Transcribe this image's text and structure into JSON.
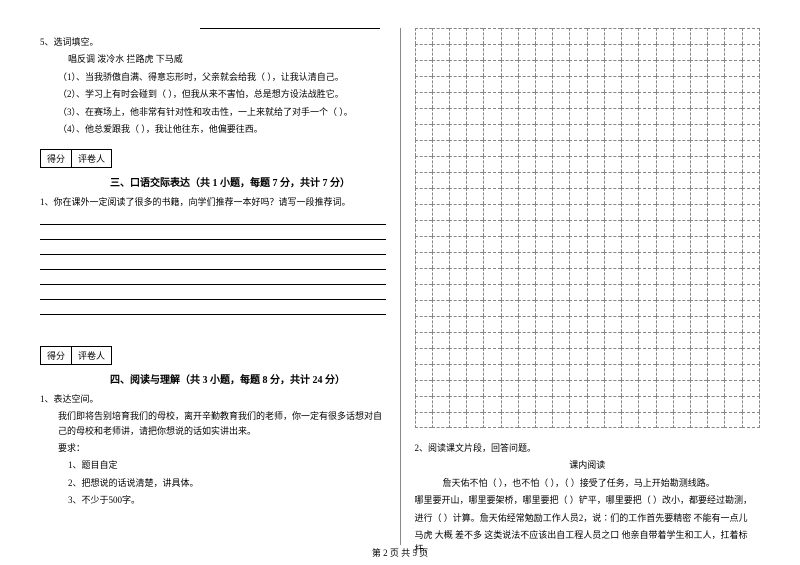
{
  "q5": {
    "title": "5、选词填空。",
    "words": "唱反调        泼冷水        拦路虎        下马威",
    "item1": "（1）、当我骄傲自满、得意忘形时，父亲就会给我（            ），让我认清自己。",
    "item2": "（2）、学习上有时会碰到（            ），但我从来不害怕，总是想方设法战胜它。",
    "item3": "（3）、在赛场上，他非常有针对性和攻击性，一上来就给了对手一个（            ）。",
    "item4": "（4）、他总爱跟我（            ），我让他往东，他偏要往西。"
  },
  "scorebox": {
    "label1": "得分",
    "label2": "评卷人"
  },
  "section3": {
    "title": "三、口语交际表达（共 1 小题，每题 7 分，共计 7 分）",
    "q1": "1、你在课外一定阅读了很多的书籍，向学们推荐一本好吗？请写一段推荐词。"
  },
  "section4": {
    "title": "四、阅读与理解（共 3 小题，每题 8 分，共计 24 分）",
    "q1_title": "1、表达空间。",
    "q1_body": "我们即将告别培育我们的母校，离开辛勤教育我们的老师，你一定有很多话想对自己的母校和老师讲，请把你想说的话如实讲出来。",
    "req_label": "要求：",
    "req1": "1、题目自定",
    "req2": "2、把想说的话说清楚，讲具体。",
    "req3": "3、不少于500字。"
  },
  "reading": {
    "q2": "2、阅读课文片段，回答问题。",
    "subtitle": "课内阅读",
    "body1": "詹天佑不怕（      ），也不怕（      ），（      ）接受了任务，马上开始勘测线路。",
    "body2": "哪里要开山，哪里要架桥，哪里要把（      ）铲平，哪里要把（      ）改小，都要经过勘测，",
    "body3": "进行（      ）计算。詹天佑经常勉励工作人员2，说∶们的工作首先要精密  不能有一点儿",
    "body4": "马虎   大概  差不多  这类说法不应该出自工程人员之口   他亲自带着学生和工人，扛着标杆，"
  },
  "grid": {
    "rows": 25,
    "cols": 20,
    "border_color": "#888888"
  },
  "footer": "第 2 页 共 5 页"
}
